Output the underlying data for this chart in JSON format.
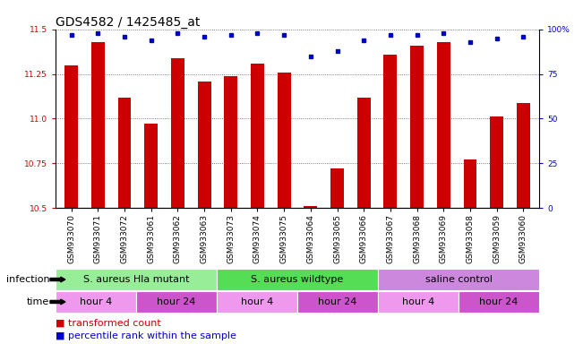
{
  "title": "GDS4582 / 1425485_at",
  "samples": [
    "GSM933070",
    "GSM933071",
    "GSM933072",
    "GSM933061",
    "GSM933062",
    "GSM933063",
    "GSM933073",
    "GSM933074",
    "GSM933075",
    "GSM933064",
    "GSM933065",
    "GSM933066",
    "GSM933067",
    "GSM933068",
    "GSM933069",
    "GSM933058",
    "GSM933059",
    "GSM933060"
  ],
  "bar_values": [
    11.3,
    11.43,
    11.12,
    10.97,
    11.34,
    11.21,
    11.24,
    11.31,
    11.26,
    10.51,
    10.72,
    11.12,
    11.36,
    11.41,
    11.43,
    10.77,
    11.01,
    11.09
  ],
  "percentile_values": [
    97,
    98,
    96,
    94,
    98,
    96,
    97,
    98,
    97,
    85,
    88,
    94,
    97,
    97,
    98,
    93,
    95,
    96
  ],
  "ylim_left": [
    10.5,
    11.5
  ],
  "ylim_right": [
    0,
    100
  ],
  "yticks_left": [
    10.5,
    10.75,
    11.0,
    11.25,
    11.5
  ],
  "yticks_right": [
    0,
    25,
    50,
    75,
    100
  ],
  "bar_color": "#CC0000",
  "dot_color": "#0000CC",
  "grid_color": "#000000",
  "bg_color": "#ffffff",
  "infection_groups": [
    {
      "label": "S. aureus Hla mutant",
      "start": 0,
      "end": 6,
      "color": "#98EE98"
    },
    {
      "label": "S. aureus wildtype",
      "start": 6,
      "end": 12,
      "color": "#55DD55"
    },
    {
      "label": "saline control",
      "start": 12,
      "end": 18,
      "color": "#CC88DD"
    }
  ],
  "time_groups": [
    {
      "label": "hour 4",
      "start": 0,
      "end": 3,
      "color": "#EE99EE"
    },
    {
      "label": "hour 24",
      "start": 3,
      "end": 6,
      "color": "#CC55CC"
    },
    {
      "label": "hour 4",
      "start": 6,
      "end": 9,
      "color": "#EE99EE"
    },
    {
      "label": "hour 24",
      "start": 9,
      "end": 12,
      "color": "#CC55CC"
    },
    {
      "label": "hour 4",
      "start": 12,
      "end": 15,
      "color": "#EE99EE"
    },
    {
      "label": "hour 24",
      "start": 15,
      "end": 18,
      "color": "#CC55CC"
    }
  ],
  "legend_items": [
    {
      "label": "transformed count",
      "color": "#CC0000"
    },
    {
      "label": "percentile rank within the sample",
      "color": "#0000CC"
    }
  ],
  "infection_label": "infection",
  "time_label": "time",
  "title_fontsize": 10,
  "tick_fontsize": 6.5,
  "label_fontsize": 8,
  "annotation_fontsize": 8,
  "row_label_fontsize": 8,
  "legend_fontsize": 8
}
